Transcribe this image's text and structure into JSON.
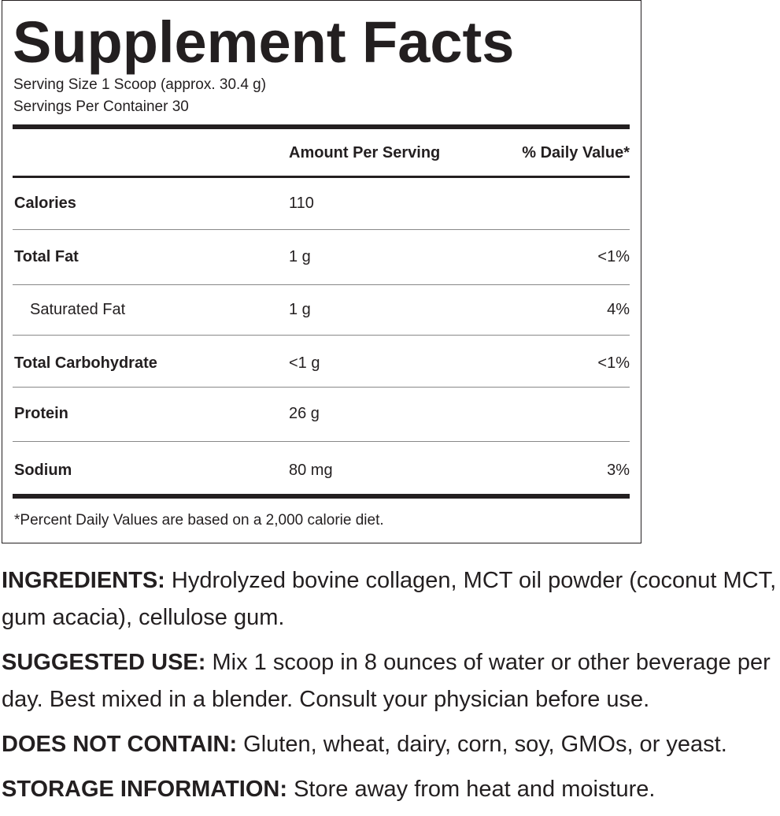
{
  "facts": {
    "title": "Supplement Facts",
    "serving_size": "Serving Size 1 Scoop (approx. 30.4 g)",
    "servings_per_container": "Servings Per Container 30",
    "header_amount": "Amount Per Serving",
    "header_dv": "% Daily Value*",
    "rows": [
      {
        "name": "Calories",
        "amount": "110",
        "dv": ""
      },
      {
        "name": "Total Fat",
        "amount": "1 g",
        "dv": "<1%"
      },
      {
        "name": "Saturated Fat",
        "amount": "1 g",
        "dv": "4%"
      },
      {
        "name": "Total Carbohydrate",
        "amount": "<1 g",
        "dv": "<1%"
      },
      {
        "name": "Protein",
        "amount": "26 g",
        "dv": ""
      },
      {
        "name": "Sodium",
        "amount": "80 mg",
        "dv": "3%"
      }
    ],
    "footnote": "*Percent Daily Values are based on a 2,000 calorie diet."
  },
  "info": [
    {
      "label": "INGREDIENTS:",
      "text": " Hydrolyzed bovine collagen, MCT oil powder (coconut MCT, gum acacia), cellulose gum."
    },
    {
      "label": "SUGGESTED USE:",
      "text": " Mix 1 scoop in 8 ounces of water or other beverage per day. Best mixed in a blender. Consult your physician before use."
    },
    {
      "label": "DOES NOT CONTAIN:",
      "text": " Gluten, wheat, dairy, corn, soy, GMOs, or yeast."
    },
    {
      "label": "STORAGE INFORMATION:",
      "text": " Store away from heat and moisture."
    }
  ]
}
